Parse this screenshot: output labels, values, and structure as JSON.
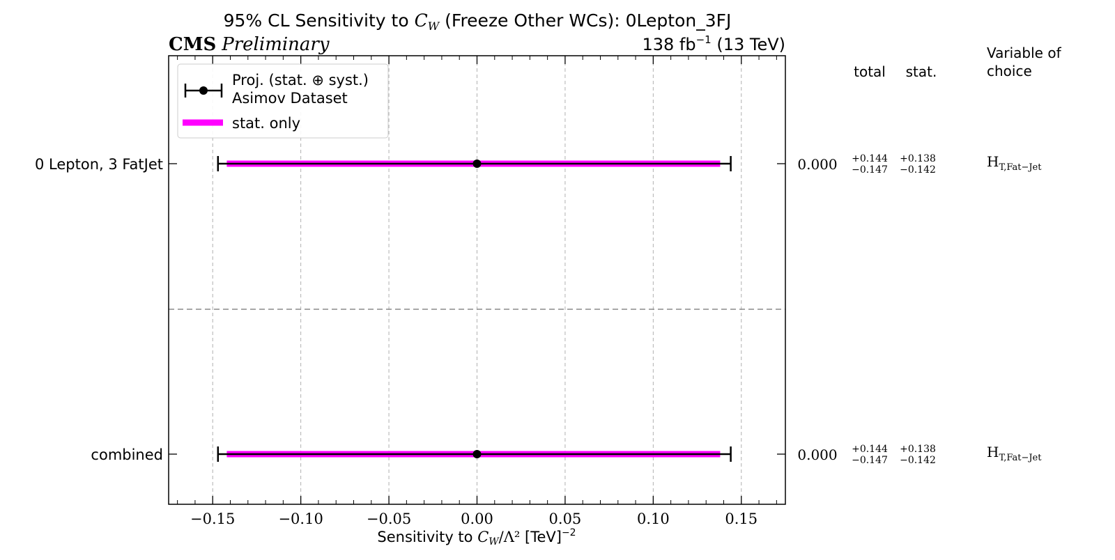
{
  "header": {
    "title_prefix": "95% CL Sensitivity to ",
    "title_param_base": "C",
    "title_param_sub": "W",
    "title_suffix": " (Freeze Other WCs): 0Lepton_3FJ",
    "experiment": "CMS",
    "status": "Preliminary",
    "lumi_value": "138 fb",
    "lumi_exp": "−1",
    "energy": " (13 TeV)"
  },
  "legend": {
    "proj_label": "Proj. (stat. ⊕ syst.)",
    "proj_sub": "Asimov Dataset",
    "stat_label": "stat. only"
  },
  "table": {
    "col_total": "total",
    "col_stat": "stat.",
    "col_variable": [
      "Variable of",
      "choice"
    ]
  },
  "colors": {
    "stat_band": "#ff00ff",
    "marker": "#000000",
    "grid": "#b0b0b0",
    "divider": "#8a8a8a"
  },
  "chart_data": {
    "type": "scatter",
    "title": "95% CL Sensitivity to C_W (Freeze Other WCs): 0Lepton_3FJ",
    "xlabel_prefix": "Sensitivity to ",
    "xlabel_math_base": "C",
    "xlabel_math_sub": "W",
    "xlabel_math_rest": "/Λ²",
    "xlabel_suffix": " [TeV]",
    "xlabel_exp": "−2",
    "xlim": [
      -0.175,
      0.175
    ],
    "xticks": [
      -0.15,
      -0.1,
      -0.05,
      0.0,
      0.05,
      0.1,
      0.15
    ],
    "xtick_labels": [
      "−0.15",
      "−0.10",
      "−0.05",
      "0.00",
      "0.05",
      "0.10",
      "0.15"
    ],
    "grid": true,
    "legend_position": "top-left",
    "rows": [
      {
        "label": "0 Lepton, 3 FatJet",
        "central": 0.0,
        "total_up": 0.144,
        "total_down": 0.147,
        "stat_up": 0.138,
        "stat_down": 0.142,
        "central_text": "0.000",
        "total_up_text": "+0.144",
        "total_down_text": "−0.147",
        "stat_up_text": "+0.138",
        "stat_down_text": "−0.142",
        "variable_base": "H",
        "variable_sub": "T,Fat−Jet"
      },
      {
        "label": "combined",
        "central": 0.0,
        "total_up": 0.144,
        "total_down": 0.147,
        "stat_up": 0.138,
        "stat_down": 0.142,
        "central_text": "0.000",
        "total_up_text": "+0.144",
        "total_down_text": "−0.147",
        "stat_up_text": "+0.138",
        "stat_down_text": "−0.142",
        "variable_base": "H",
        "variable_sub": "T,Fat−Jet"
      }
    ]
  }
}
